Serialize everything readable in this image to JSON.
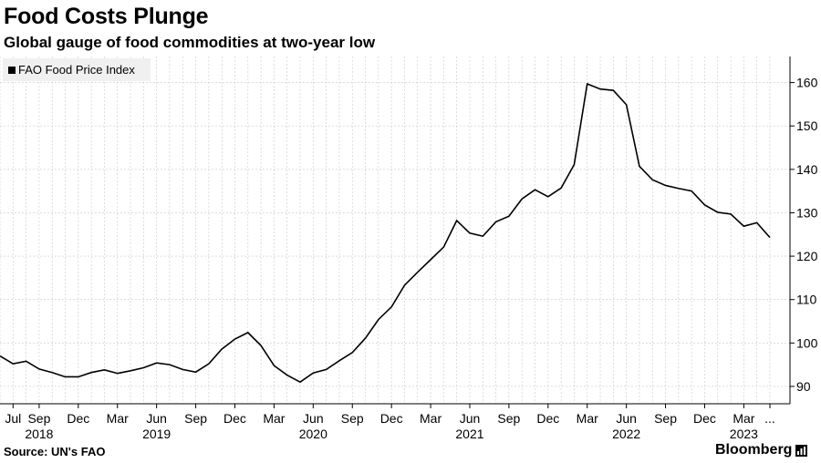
{
  "header": {
    "title": "Food Costs Plunge",
    "subtitle": "Global gauge of food commodities at two-year low"
  },
  "footer": {
    "source": "Source: UN's FAO",
    "brand": "Bloomberg"
  },
  "colors": {
    "line": "#000000",
    "grid": "#c8c8c8",
    "legend_bg": "#f0f0f0"
  },
  "chart_data": {
    "type": "line",
    "series": [
      {
        "name": "FAO Food Price Index",
        "values": [
          97.0,
          95.2,
          95.8,
          94.0,
          93.2,
          92.2,
          92.2,
          93.2,
          93.8,
          93.0,
          93.6,
          94.3,
          95.4,
          95.0,
          93.9,
          93.3,
          95.2,
          98.6,
          100.9,
          102.4,
          99.4,
          94.8,
          92.6,
          91.0,
          93.1,
          93.9,
          95.9,
          97.8,
          101.1,
          105.4,
          108.3,
          113.3,
          116.3,
          119.2,
          122.1,
          128.2,
          125.3,
          124.6,
          127.9,
          129.2,
          133.2,
          135.3,
          133.7,
          135.7,
          141.1,
          159.7,
          158.5,
          158.2,
          154.9,
          140.7,
          137.6,
          136.3,
          135.6,
          135.0,
          131.8,
          130.1,
          129.7,
          126.9,
          127.7,
          124.3
        ]
      }
    ],
    "x_start": "2018-06",
    "x_end": "2023-05",
    "x_tick_labels": [
      "Jul",
      "Sep",
      "Dec",
      "Mar",
      "Jun",
      "Sep",
      "Dec",
      "Mar",
      "Jun",
      "Sep",
      "Dec",
      "Mar",
      "Jun",
      "Sep",
      "Dec",
      "Mar",
      "Jun",
      "Sep",
      "Dec",
      "Mar",
      "..."
    ],
    "x_tick_months": [
      "2018-07",
      "2018-09",
      "2018-12",
      "2019-03",
      "2019-06",
      "2019-09",
      "2019-12",
      "2020-03",
      "2020-06",
      "2020-09",
      "2020-12",
      "2021-03",
      "2021-06",
      "2021-09",
      "2021-12",
      "2022-03",
      "2022-06",
      "2022-09",
      "2022-12",
      "2023-03",
      "2023-05"
    ],
    "year_labels": [
      "2018",
      "2019",
      "2020",
      "2021",
      "2022",
      "2023"
    ],
    "year_months": [
      "2018-09",
      "2019-06",
      "2020-06",
      "2021-06",
      "2022-06",
      "2023-03"
    ],
    "y_ticks": [
      90,
      100,
      110,
      120,
      130,
      140,
      150,
      160
    ],
    "ylim": [
      86,
      166
    ],
    "y_axis_side": "right",
    "grid": true,
    "legend": "top-left"
  }
}
